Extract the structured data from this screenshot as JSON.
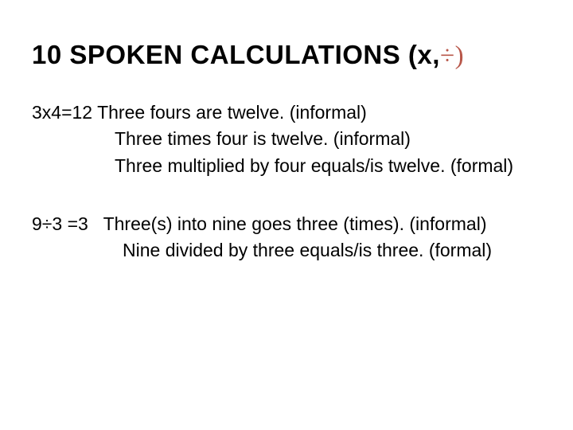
{
  "title": {
    "part1": "10 SPOKEN CALCULATIONS (x,",
    "part2": "÷)",
    "color_black": "#000000",
    "color_red": "#b8574a",
    "fontsize": 33
  },
  "body": {
    "fontsize": 23,
    "text_color": "#000000",
    "bg_color": "#ffffff",
    "block1": {
      "eq": "3x4=12",
      "line1": "Three fours are twelve. (informal)",
      "line2": "Three times four is twelve. (informal)",
      "line3": "Three multiplied by four equals/is twelve. (formal)"
    },
    "block2": {
      "eq": "9÷3 =3",
      "line1": "Three(s) into nine goes three (times). (informal)",
      "line2": "Nine divided by three equals/is three. (formal)"
    }
  }
}
